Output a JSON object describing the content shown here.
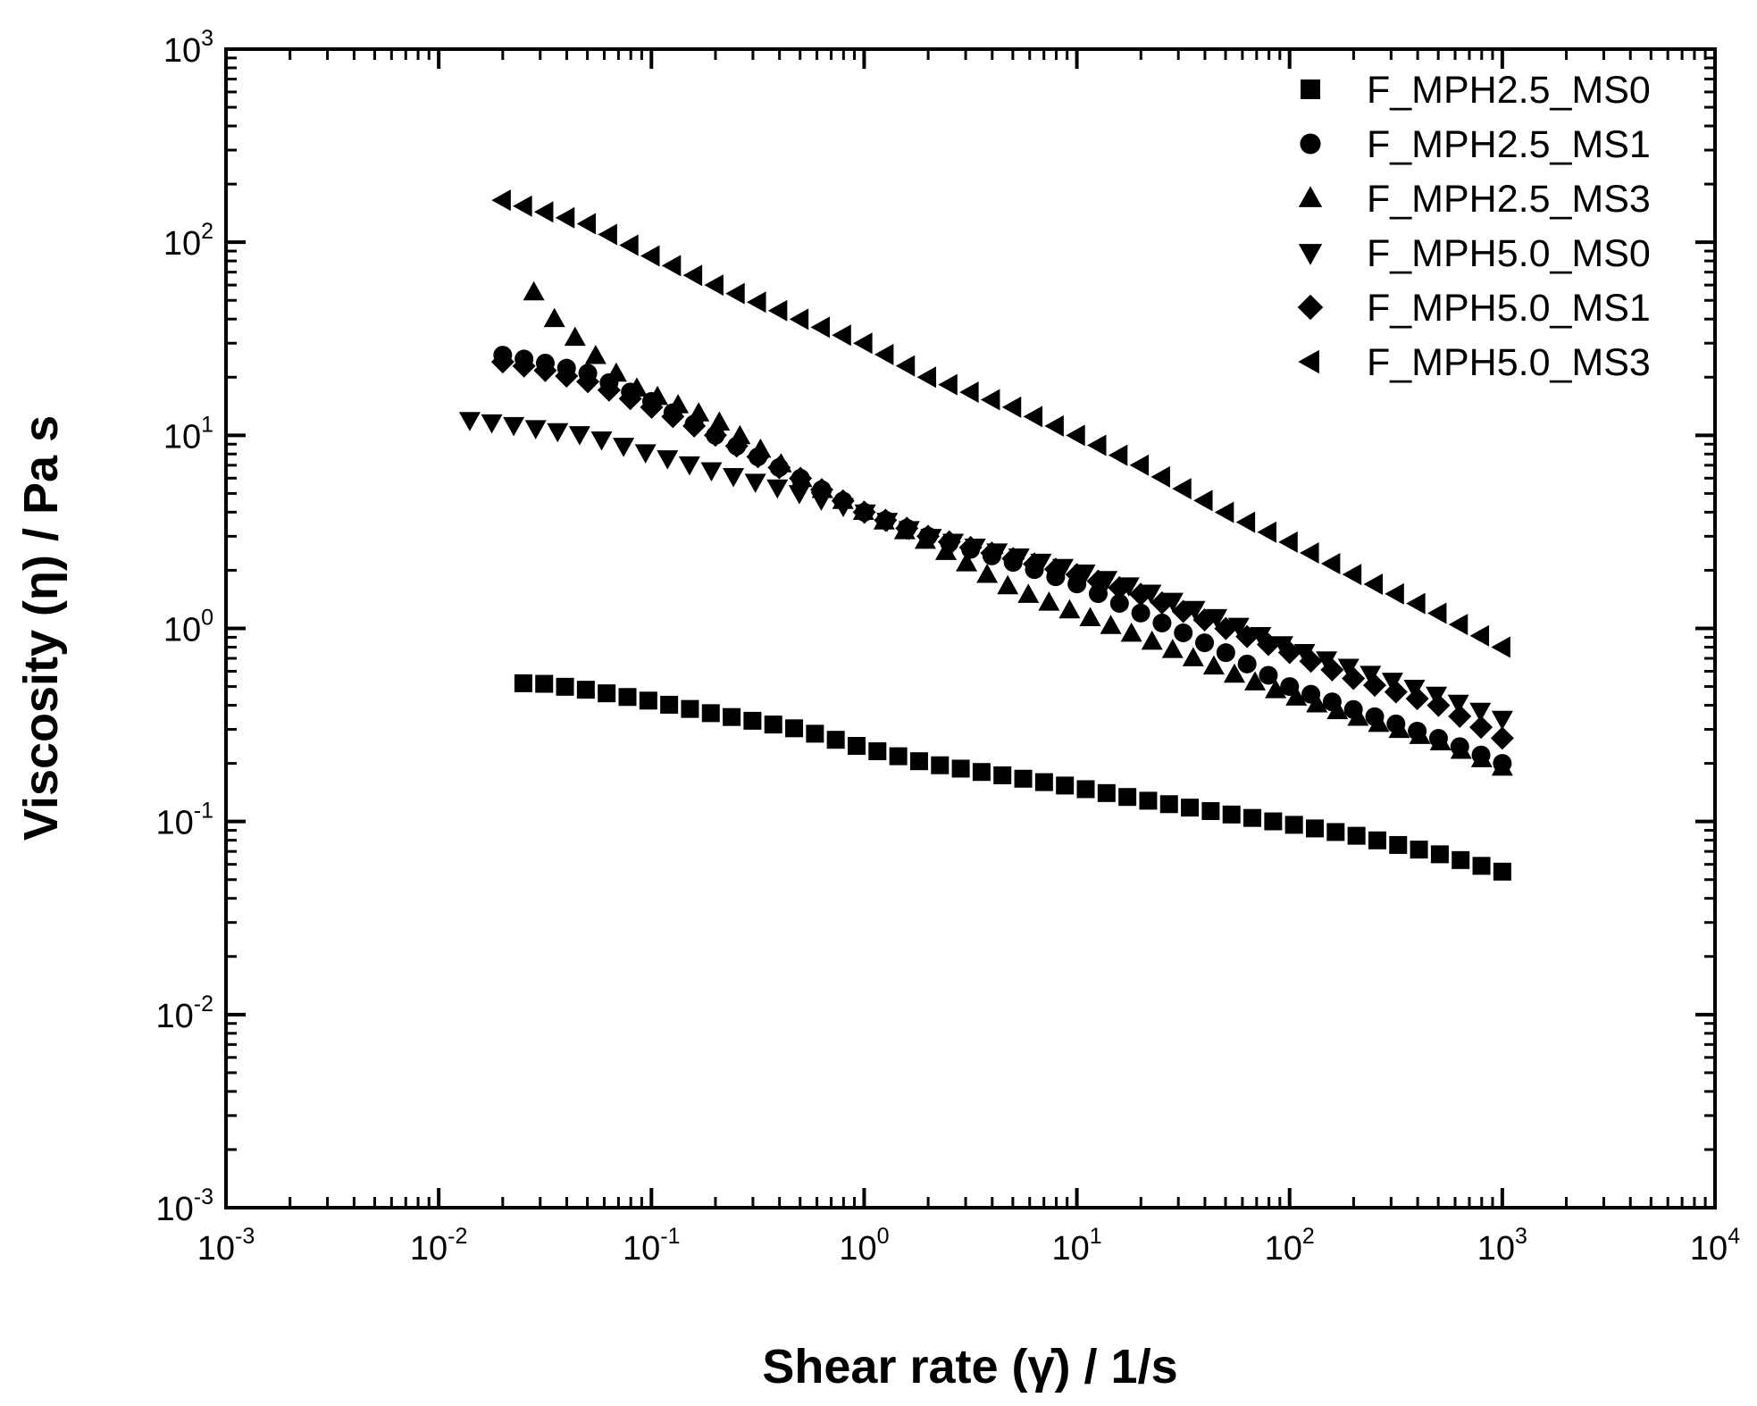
{
  "chart_data": {
    "type": "scatter",
    "title": "",
    "xlabel": "Shear rate (γ̇) / 1/s",
    "ylabel": "Viscosity (η) / Pa s",
    "xscale": "log",
    "yscale": "log",
    "xlim": [
      0.001,
      10000
    ],
    "ylim": [
      0.001,
      1000
    ],
    "x_ticks": [
      {
        "base": "10",
        "exp": "-3"
      },
      {
        "base": "10",
        "exp": "-2"
      },
      {
        "base": "10",
        "exp": "-1"
      },
      {
        "base": "10",
        "exp": "0"
      },
      {
        "base": "10",
        "exp": "1"
      },
      {
        "base": "10",
        "exp": "2"
      },
      {
        "base": "10",
        "exp": "3"
      },
      {
        "base": "10",
        "exp": "4"
      }
    ],
    "y_ticks": [
      {
        "base": "10",
        "exp": "-3"
      },
      {
        "base": "10",
        "exp": "-2"
      },
      {
        "base": "10",
        "exp": "-1"
      },
      {
        "base": "10",
        "exp": "0"
      },
      {
        "base": "10",
        "exp": "1"
      },
      {
        "base": "10",
        "exp": "2"
      },
      {
        "base": "10",
        "exp": "3"
      }
    ],
    "legend_position": "top-right",
    "series": [
      {
        "name": "F_MPH2.5_MS0",
        "marker": "square",
        "x": [
          0.025,
          0.03,
          0.05,
          0.1,
          0.2,
          0.5,
          1,
          2,
          5,
          10,
          20,
          50,
          100,
          200,
          500,
          1000
        ],
        "y": [
          0.52,
          0.52,
          0.48,
          0.42,
          0.36,
          0.3,
          0.24,
          0.2,
          0.17,
          0.15,
          0.13,
          0.11,
          0.097,
          0.085,
          0.068,
          0.055
        ]
      },
      {
        "name": "F_MPH2.5_MS1",
        "marker": "circle",
        "x": [
          0.02,
          0.03,
          0.05,
          0.1,
          0.2,
          0.5,
          1,
          2,
          5,
          10,
          20,
          50,
          100,
          200,
          500,
          1000
        ],
        "y": [
          26,
          24,
          21,
          15,
          10,
          6,
          4,
          3,
          2.2,
          1.7,
          1.2,
          0.75,
          0.5,
          0.38,
          0.27,
          0.2
        ]
      },
      {
        "name": "F_MPH2.5_MS3",
        "marker": "triangle-up",
        "x": [
          0.028,
          0.035,
          0.05,
          0.08,
          0.12,
          0.2,
          0.35,
          0.5,
          1,
          2,
          5,
          10,
          20,
          50,
          100,
          200,
          500,
          1000
        ],
        "y": [
          55,
          40,
          28,
          18,
          15,
          12,
          8,
          6,
          4,
          2.8,
          1.6,
          1.2,
          0.9,
          0.6,
          0.45,
          0.35,
          0.26,
          0.19
        ]
      },
      {
        "name": "F_MPH5.0_MS0",
        "marker": "triangle-down",
        "x": [
          0.014,
          0.02,
          0.05,
          0.1,
          0.2,
          0.5,
          1,
          2,
          5,
          10,
          20,
          50,
          100,
          200,
          500,
          1000
        ],
        "y": [
          12,
          11.5,
          10,
          8,
          6.5,
          5,
          4,
          3,
          2.4,
          2,
          1.6,
          1.1,
          0.8,
          0.62,
          0.45,
          0.34
        ]
      },
      {
        "name": "F_MPH5.0_MS1",
        "marker": "diamond",
        "x": [
          0.02,
          0.03,
          0.05,
          0.1,
          0.2,
          0.5,
          1,
          2,
          5,
          10,
          20,
          50,
          100,
          200,
          500,
          1000
        ],
        "y": [
          24,
          22,
          19,
          14,
          10,
          6,
          4,
          3,
          2.3,
          1.9,
          1.5,
          1.0,
          0.75,
          0.55,
          0.4,
          0.27
        ]
      },
      {
        "name": "F_MPH5.0_MS3",
        "marker": "triangle-left",
        "x": [
          0.02,
          0.05,
          0.1,
          0.2,
          0.5,
          1,
          2,
          5,
          10,
          20,
          50,
          100,
          200,
          500,
          1000
        ],
        "y": [
          165,
          125,
          85,
          60,
          40,
          30,
          20,
          14,
          10,
          7,
          4,
          2.8,
          1.9,
          1.2,
          0.8
        ]
      }
    ]
  }
}
